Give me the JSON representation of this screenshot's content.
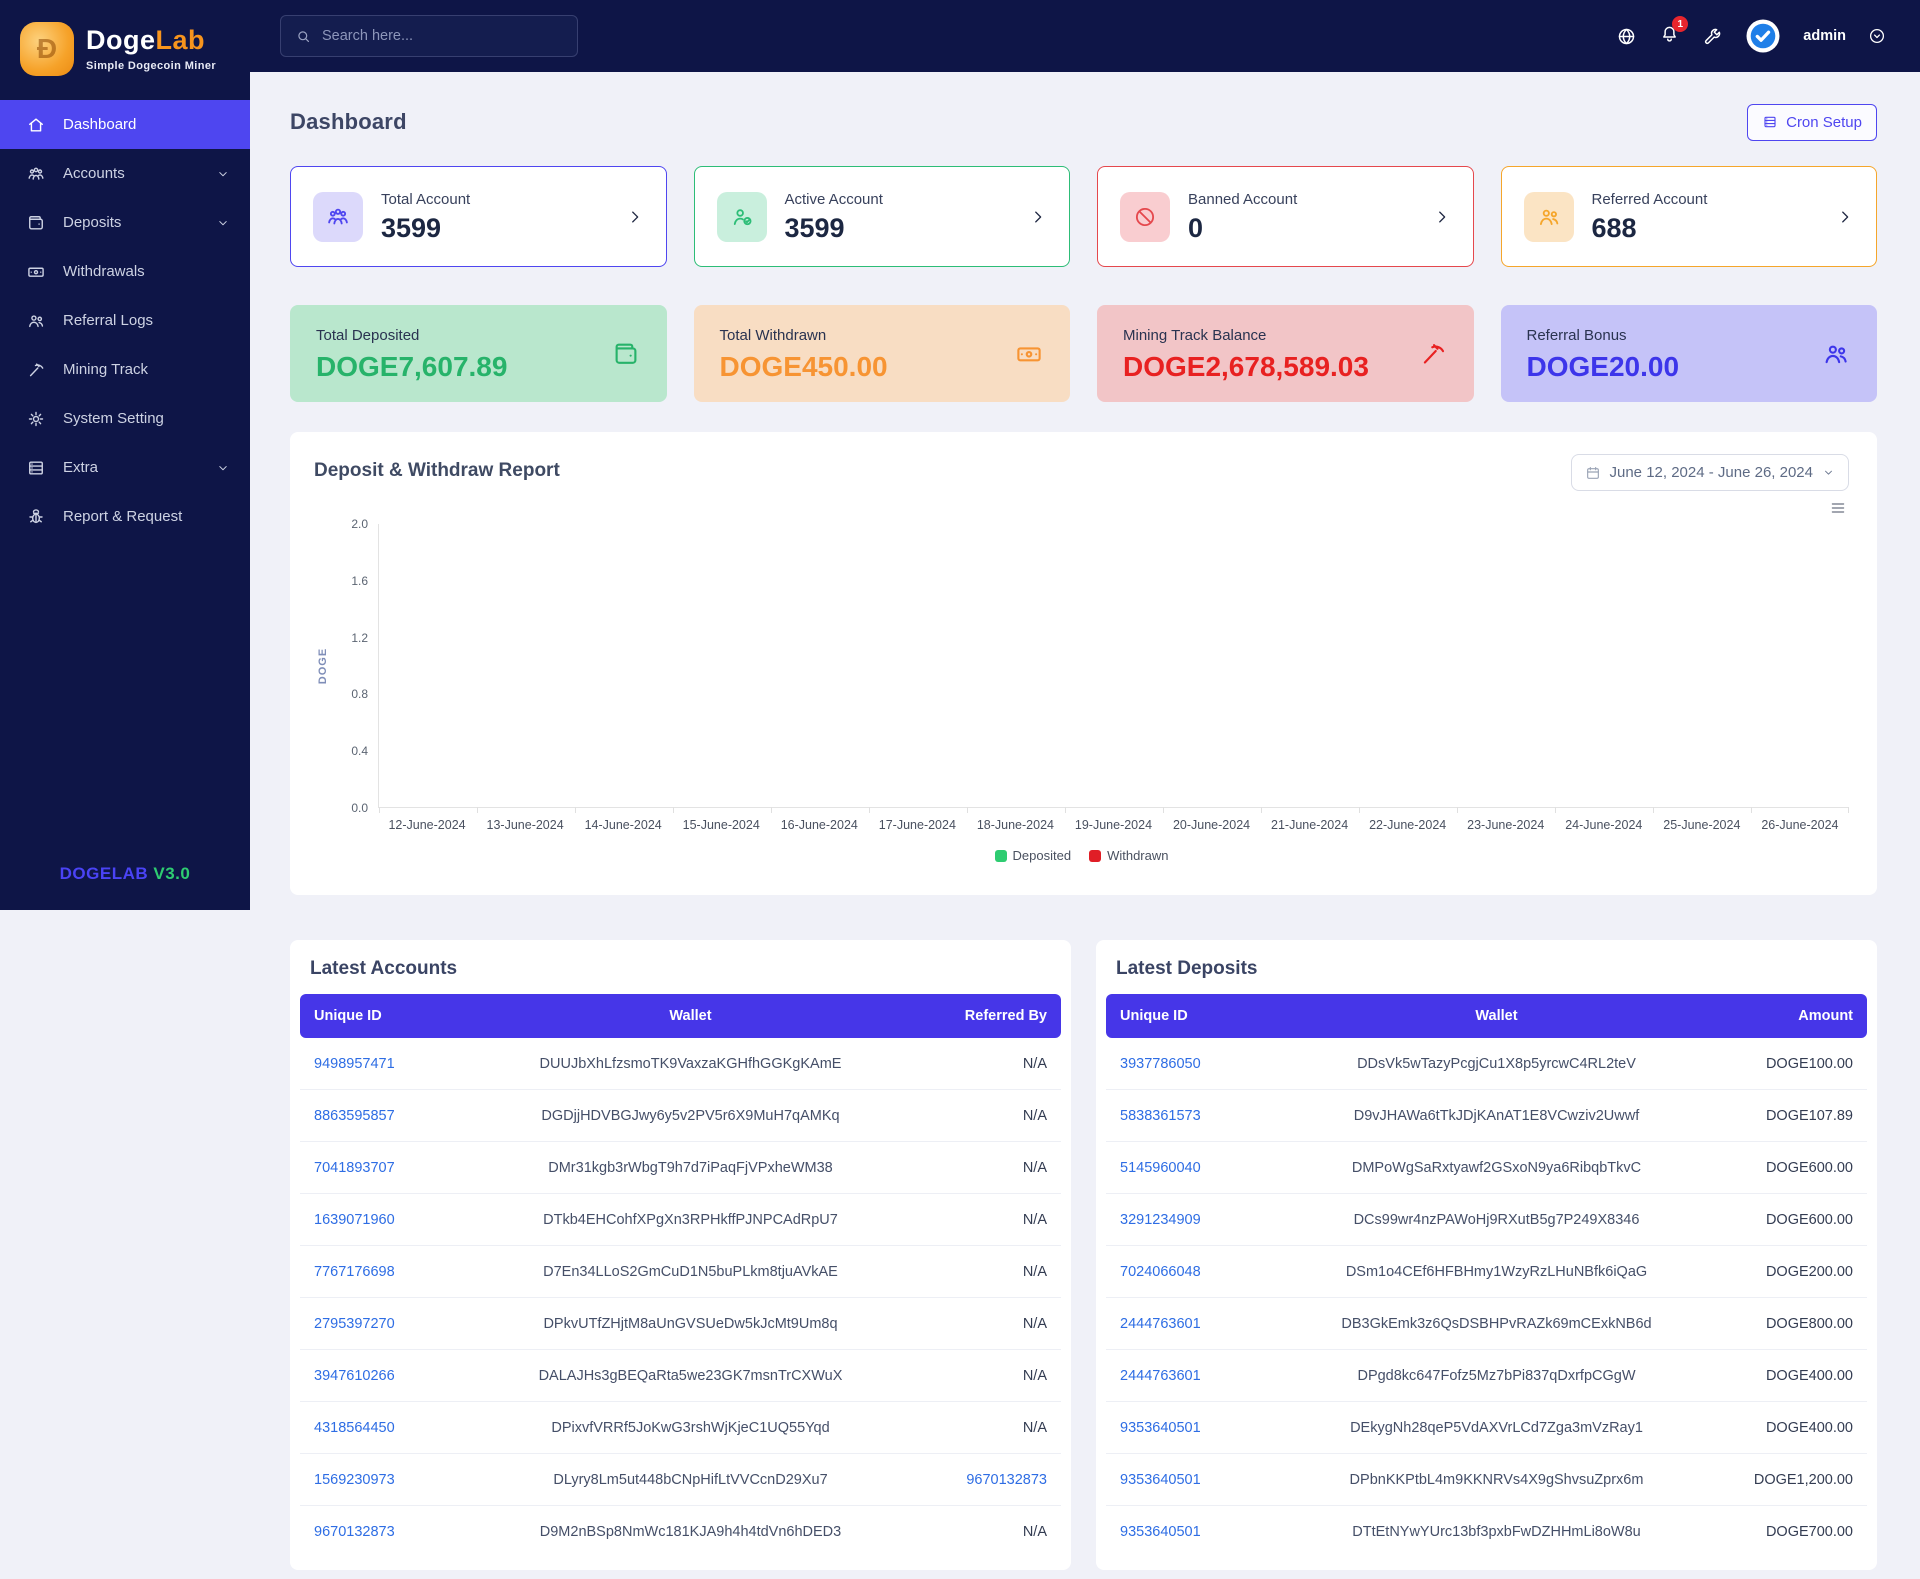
{
  "brand": {
    "name_primary": "Doge",
    "name_secondary": "Lab",
    "coin_letter": "Đ",
    "tagline": "Simple Dogecoin Miner",
    "footer_name": "DOGELAB",
    "footer_version": "V3.0"
  },
  "topbar": {
    "search_placeholder": "Search here...",
    "notification_count": "1",
    "username": "admin",
    "icons": [
      "globe",
      "bell",
      "wrench",
      "avatar-check",
      "chevron-circle-down"
    ]
  },
  "sidebar": {
    "items": [
      {
        "label": "Dashboard",
        "icon": "home",
        "active": true,
        "chevron": false
      },
      {
        "label": "Accounts",
        "icon": "users-group",
        "active": false,
        "chevron": true
      },
      {
        "label": "Deposits",
        "icon": "wallet",
        "active": false,
        "chevron": true
      },
      {
        "label": "Withdrawals",
        "icon": "banknote",
        "active": false,
        "chevron": false
      },
      {
        "label": "Referral Logs",
        "icon": "two-users",
        "active": false,
        "chevron": false
      },
      {
        "label": "Mining Track",
        "icon": "pickaxe",
        "active": false,
        "chevron": false
      },
      {
        "label": "System Setting",
        "icon": "gear",
        "active": false,
        "chevron": false
      },
      {
        "label": "Extra",
        "icon": "rows",
        "active": false,
        "chevron": true
      },
      {
        "label": "Report & Request",
        "icon": "bug",
        "active": false,
        "chevron": false
      }
    ]
  },
  "page": {
    "title": "Dashboard",
    "cron_button": "Cron Setup",
    "cron_icon": "rows"
  },
  "stat_cards": [
    {
      "title": "Total Account",
      "value": "3599",
      "icon": "users-group",
      "accent": "#4f46f0",
      "icon_bg": "#dcd9fb"
    },
    {
      "title": "Active Account",
      "value": "3599",
      "icon": "user-check",
      "accent": "#2dbd77",
      "icon_bg": "#c9efdd"
    },
    {
      "title": "Banned Account",
      "value": "0",
      "icon": "ban",
      "accent": "#e5484d",
      "icon_bg": "#f9cdd0"
    },
    {
      "title": "Referred Account",
      "value": "688",
      "icon": "two-users",
      "accent": "#f5a62b",
      "icon_bg": "#fbe4c4"
    }
  ],
  "summary_cards": [
    {
      "title": "Total Deposited",
      "value": "DOGE7,607.89",
      "icon": "wallet",
      "bg": "#b9e7cd",
      "accent": "#27b36a"
    },
    {
      "title": "Total Withdrawn",
      "value": "DOGE450.00",
      "icon": "banknote",
      "bg": "#f8ddc3",
      "accent": "#f79433"
    },
    {
      "title": "Mining Track Balance",
      "value": "DOGE2,678,589.03",
      "icon": "pickaxe",
      "bg": "#f2c5c7",
      "accent": "#e82121"
    },
    {
      "title": "Referral Bonus",
      "value": "DOGE20.00",
      "icon": "two-users",
      "bg": "#c5c3f8",
      "accent": "#3d35ea"
    }
  ],
  "chart": {
    "title": "Deposit & Withdraw Report",
    "date_range": "June 12, 2024 - June 26, 2024",
    "ylabel": "DOGE",
    "y_tick_labels": [
      "2.0",
      "1.6",
      "1.2",
      "0.8",
      "0.4",
      "0.0"
    ],
    "legend": [
      {
        "label": "Deposited",
        "color": "#2ecc71"
      },
      {
        "label": "Withdrawn",
        "color": "#e01e26"
      }
    ]
  },
  "chart_data": {
    "type": "bar",
    "title": "Deposit & Withdraw Report",
    "x": [
      "12-June-2024",
      "13-June-2024",
      "14-June-2024",
      "15-June-2024",
      "16-June-2024",
      "17-June-2024",
      "18-June-2024",
      "19-June-2024",
      "20-June-2024",
      "21-June-2024",
      "22-June-2024",
      "23-June-2024",
      "24-June-2024",
      "25-June-2024",
      "26-June-2024"
    ],
    "series": [
      {
        "name": "Deposited",
        "color": "#2ecc71",
        "values": [
          0,
          0,
          0,
          0,
          0,
          0,
          0,
          0,
          0,
          0,
          0,
          0,
          0,
          0,
          0
        ]
      },
      {
        "name": "Withdrawn",
        "color": "#e01e26",
        "values": [
          0,
          0,
          0,
          0,
          0,
          0,
          0,
          0,
          0,
          0,
          0,
          0,
          0,
          0,
          0
        ]
      }
    ],
    "xlabel": "",
    "ylabel": "DOGE",
    "ylim": [
      0,
      2.0
    ],
    "y_ticks": [
      0.0,
      0.4,
      0.8,
      1.2,
      1.6,
      2.0
    ],
    "grid": false,
    "legend_position": "bottom"
  },
  "tables": {
    "accounts": {
      "title": "Latest Accounts",
      "columns": [
        "Unique ID",
        "Wallet",
        "Referred By"
      ],
      "rows": [
        {
          "unique_id": "9498957471",
          "wallet": "DUUJbXhLfzsmoTK9VaxzaKGHfhGGKgKAmE",
          "referred_by": "N/A",
          "referred_link": false
        },
        {
          "unique_id": "8863595857",
          "wallet": "DGDjjHDVBGJwy6y5v2PV5r6X9MuH7qAMKq",
          "referred_by": "N/A",
          "referred_link": false
        },
        {
          "unique_id": "7041893707",
          "wallet": "DMr31kgb3rWbgT9h7d7iPaqFjVPxheWM38",
          "referred_by": "N/A",
          "referred_link": false
        },
        {
          "unique_id": "1639071960",
          "wallet": "DTkb4EHCohfXPgXn3RPHkffPJNPCAdRpU7",
          "referred_by": "N/A",
          "referred_link": false
        },
        {
          "unique_id": "7767176698",
          "wallet": "D7En34LLoS2GmCuD1N5buPLkm8tjuAVkAE",
          "referred_by": "N/A",
          "referred_link": false
        },
        {
          "unique_id": "2795397270",
          "wallet": "DPkvUTfZHjtM8aUnGVSUeDw5kJcMt9Um8q",
          "referred_by": "N/A",
          "referred_link": false
        },
        {
          "unique_id": "3947610266",
          "wallet": "DALAJHs3gBEQaRta5we23GK7msnTrCXWuX",
          "referred_by": "N/A",
          "referred_link": false
        },
        {
          "unique_id": "4318564450",
          "wallet": "DPixvfVRRf5JoKwG3rshWjKjeC1UQ55Yqd",
          "referred_by": "N/A",
          "referred_link": false
        },
        {
          "unique_id": "1569230973",
          "wallet": "DLyry8Lm5ut448bCNpHifLtVVCcnD29Xu7",
          "referred_by": "9670132873",
          "referred_link": true
        },
        {
          "unique_id": "9670132873",
          "wallet": "D9M2nBSp8NmWc181KJA9h4h4tdVn6hDED3",
          "referred_by": "N/A",
          "referred_link": false
        }
      ]
    },
    "deposits": {
      "title": "Latest Deposits",
      "columns": [
        "Unique ID",
        "Wallet",
        "Amount"
      ],
      "rows": [
        {
          "unique_id": "3937786050",
          "wallet": "DDsVk5wTazyPcgjCu1X8p5yrcwC4RL2teV",
          "amount": "DOGE100.00"
        },
        {
          "unique_id": "5838361573",
          "wallet": "D9vJHAWa6tTkJDjKAnAT1E8VCwziv2Uwwf",
          "amount": "DOGE107.89"
        },
        {
          "unique_id": "5145960040",
          "wallet": "DMPoWgSaRxtyawf2GSxoN9ya6RibqbTkvC",
          "amount": "DOGE600.00"
        },
        {
          "unique_id": "3291234909",
          "wallet": "DCs99wr4nzPAWoHj9RXutB5g7P249X8346",
          "amount": "DOGE600.00"
        },
        {
          "unique_id": "7024066048",
          "wallet": "DSm1o4CEf6HFBHmy1WzyRzLHuNBfk6iQaG",
          "amount": "DOGE200.00"
        },
        {
          "unique_id": "2444763601",
          "wallet": "DB3GkEmk3z6QsDSBHPvRAZk69mCExkNB6d",
          "amount": "DOGE800.00"
        },
        {
          "unique_id": "2444763601",
          "wallet": "DPgd8kc647Fofz5Mz7bPi837qDxrfpCGgW",
          "amount": "DOGE400.00"
        },
        {
          "unique_id": "9353640501",
          "wallet": "DEkygNh28qeP5VdAXVrLCd7Zga3mVzRay1",
          "amount": "DOGE400.00"
        },
        {
          "unique_id": "9353640501",
          "wallet": "DPbnKKPtbL4m9KKNRVs4X9gShvsuZprx6m",
          "amount": "DOGE1,200.00"
        },
        {
          "unique_id": "9353640501",
          "wallet": "DTtEtNYwYUrc13bf3pxbFwDZHHmLi8oW8u",
          "amount": "DOGE700.00"
        }
      ]
    }
  }
}
